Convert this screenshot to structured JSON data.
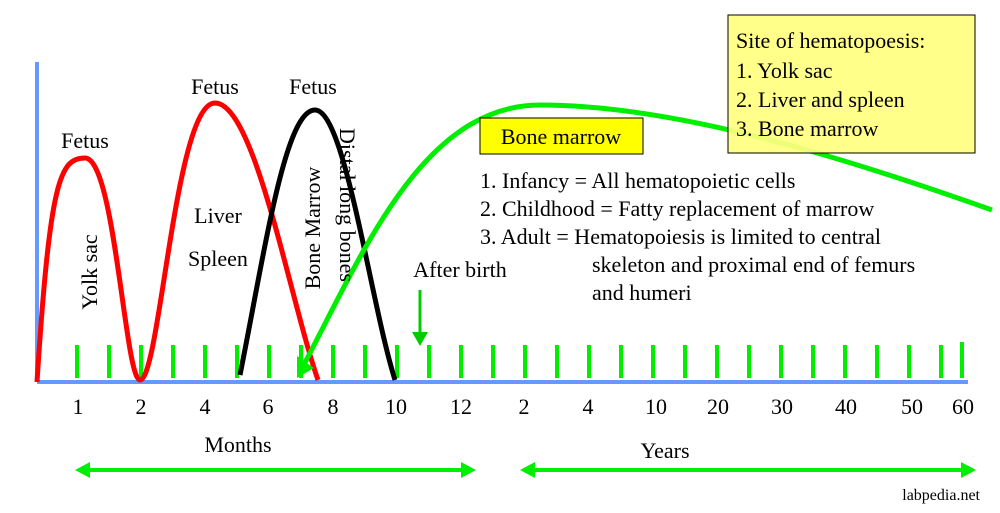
{
  "header": {
    "sites_box": {
      "title": "Site of hematopoesis:",
      "items": [
        "1. Yolk sac",
        "2. Liver and spleen",
        "3. Bone marrow"
      ]
    }
  },
  "curve_labels": {
    "fetus_1": "Fetus",
    "fetus_2": "Fetus",
    "fetus_3": "Fetus",
    "yolk_sac": "Yolk sac",
    "liver": "Liver",
    "spleen": "Spleen",
    "bone_marrow": "Bone Marrow",
    "distal_long_bones": "Distal long bones"
  },
  "annotation": "After birth",
  "bone_marrow_box": {
    "title": "Bone marrow",
    "lines": [
      "1. Infancy = All hematopoietic cells",
      "2. Childhood = Fatty replacement of marrow",
      "3. Adult = Hematopoiesis is limited to central",
      "skeleton and proximal end of femurs",
      "and humeri"
    ]
  },
  "axis": {
    "labels": [
      "1",
      "2",
      "4",
      "6",
      "8",
      "10",
      "12",
      "2",
      "4",
      "10",
      "20",
      "30",
      "40",
      "50",
      "60"
    ],
    "months": "Months",
    "years": "Years"
  },
  "footer": "labpedia.net"
}
